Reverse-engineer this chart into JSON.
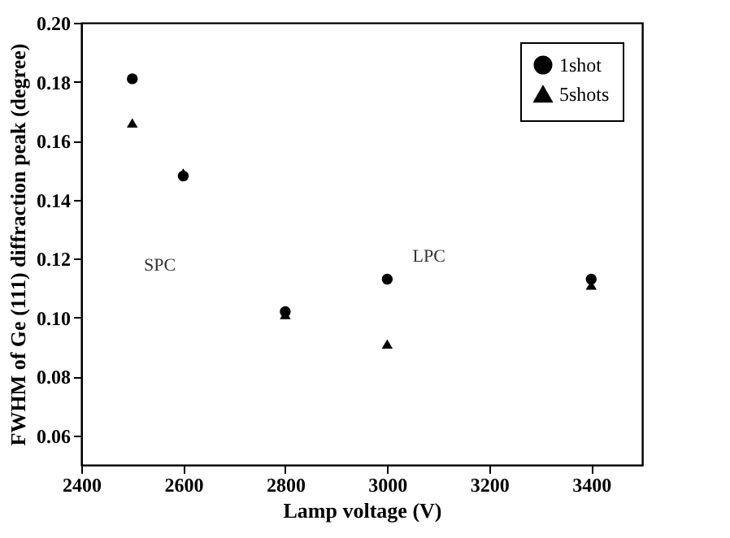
{
  "chart_data": {
    "type": "scatter",
    "xlabel": "Lamp voltage (V)",
    "ylabel": "FWHM of Ge (111) diffraction peak (degree)",
    "x": [
      2500,
      2600,
      2800,
      3000,
      3400
    ],
    "series": [
      {
        "name": "1shot",
        "color": "#000000",
        "marker": "circle",
        "values": [
          0.181,
          0.148,
          0.102,
          0.113,
          0.113
        ]
      },
      {
        "name": "5shots",
        "color": "#000000",
        "marker": "triangle",
        "values": [
          0.166,
          0.149,
          0.101,
          0.091,
          0.111
        ]
      }
    ],
    "xlim": [
      2400,
      3500
    ],
    "xticks": [
      2400,
      2600,
      2800,
      3000,
      3200,
      3400
    ],
    "ylim": [
      0.05,
      0.2
    ],
    "yticks": [
      {
        "value": 0.06,
        "label": "0.06"
      },
      {
        "value": 0.08,
        "label": "0.08"
      },
      {
        "value": 0.1,
        "label": "0.10"
      },
      {
        "value": 0.12,
        "label": "0.12"
      },
      {
        "value": 0.14,
        "label": "0.14"
      },
      {
        "value": 0.16,
        "label": "0.16"
      },
      {
        "value": 0.18,
        "label": "0.18"
      },
      {
        "value": 0.2,
        "label": "0.20"
      }
    ],
    "annotations": [
      "SPC",
      "LPC"
    ],
    "grid": false,
    "legend": "top right"
  }
}
